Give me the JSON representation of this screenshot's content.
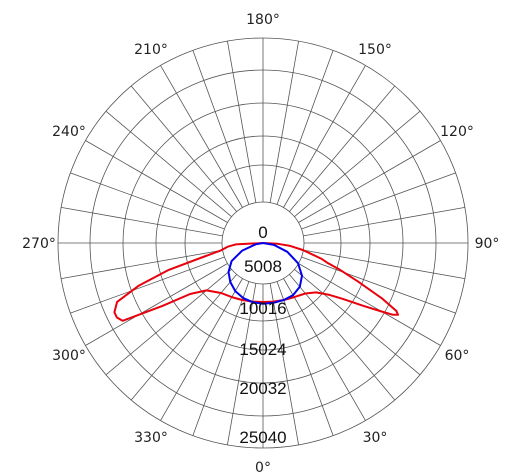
{
  "chart_data": {
    "type": "polar",
    "angle_labels": [
      "0°",
      "30°",
      "60°",
      "90°",
      "120°",
      "150°",
      "180°",
      "210°",
      "240°",
      "270°",
      "300°",
      "330°"
    ],
    "radial_labels": [
      "0",
      "5008",
      "10016",
      "15024",
      "20032",
      "25040"
    ],
    "rlim": [
      0,
      25040
    ],
    "grid": true,
    "series": [
      {
        "color": "#e8000b",
        "points": [
          {
            "angle": -90,
            "r": 0
          },
          {
            "angle": -87,
            "r": 3700
          },
          {
            "angle": -84,
            "r": 4800
          },
          {
            "angle": -80,
            "r": 6000
          },
          {
            "angle": -77,
            "r": 9000
          },
          {
            "angle": -74,
            "r": 15000
          },
          {
            "angle": -71,
            "r": 20000
          },
          {
            "angle": -68,
            "r": 24000
          },
          {
            "angle": -65,
            "r": 25700
          },
          {
            "angle": -63,
            "r": 25800
          },
          {
            "angle": -61,
            "r": 24500
          },
          {
            "angle": -58,
            "r": 18000
          },
          {
            "angle": -55,
            "r": 13500
          },
          {
            "angle": -50,
            "r": 11200
          },
          {
            "angle": -40,
            "r": 9900
          },
          {
            "angle": -30,
            "r": 9400
          },
          {
            "angle": -20,
            "r": 9100
          },
          {
            "angle": -10,
            "r": 8900
          },
          {
            "angle": 0,
            "r": 8800
          },
          {
            "angle": 10,
            "r": 8900
          },
          {
            "angle": 20,
            "r": 9100
          },
          {
            "angle": 30,
            "r": 9400
          },
          {
            "angle": 40,
            "r": 10000
          },
          {
            "angle": 47,
            "r": 11000
          },
          {
            "angle": 52,
            "r": 12800
          },
          {
            "angle": 55,
            "r": 14800
          },
          {
            "angle": 58,
            "r": 18000
          },
          {
            "angle": 60,
            "r": 20800
          },
          {
            "angle": 61,
            "r": 22500
          },
          {
            "angle": 62,
            "r": 23300
          },
          {
            "angle": 63,
            "r": 22800
          },
          {
            "angle": 65,
            "r": 20000
          },
          {
            "angle": 68,
            "r": 15500
          },
          {
            "angle": 71,
            "r": 12200
          },
          {
            "angle": 73,
            "r": 10200
          },
          {
            "angle": 75,
            "r": 9000
          },
          {
            "angle": 80,
            "r": 5600
          },
          {
            "angle": 84,
            "r": 3700
          },
          {
            "angle": 87,
            "r": 2000
          },
          {
            "angle": 90,
            "r": 0
          }
        ]
      },
      {
        "color": "#0000ee",
        "points": [
          {
            "angle": -90,
            "r": 0
          },
          {
            "angle": -80,
            "r": 1000
          },
          {
            "angle": -70,
            "r": 3000
          },
          {
            "angle": -60,
            "r": 4900
          },
          {
            "angle": -50,
            "r": 6400
          },
          {
            "angle": -40,
            "r": 7400
          },
          {
            "angle": -30,
            "r": 8200
          },
          {
            "angle": -20,
            "r": 8700
          },
          {
            "angle": -10,
            "r": 9000
          },
          {
            "angle": 0,
            "r": 9100
          },
          {
            "angle": 10,
            "r": 9100
          },
          {
            "angle": 20,
            "r": 9100
          },
          {
            "angle": 30,
            "r": 9000
          },
          {
            "angle": 40,
            "r": 8500
          },
          {
            "angle": 50,
            "r": 7400
          },
          {
            "angle": 60,
            "r": 5600
          },
          {
            "angle": 70,
            "r": 3500
          },
          {
            "angle": 80,
            "r": 1500
          },
          {
            "angle": 90,
            "r": 0
          }
        ]
      }
    ]
  }
}
